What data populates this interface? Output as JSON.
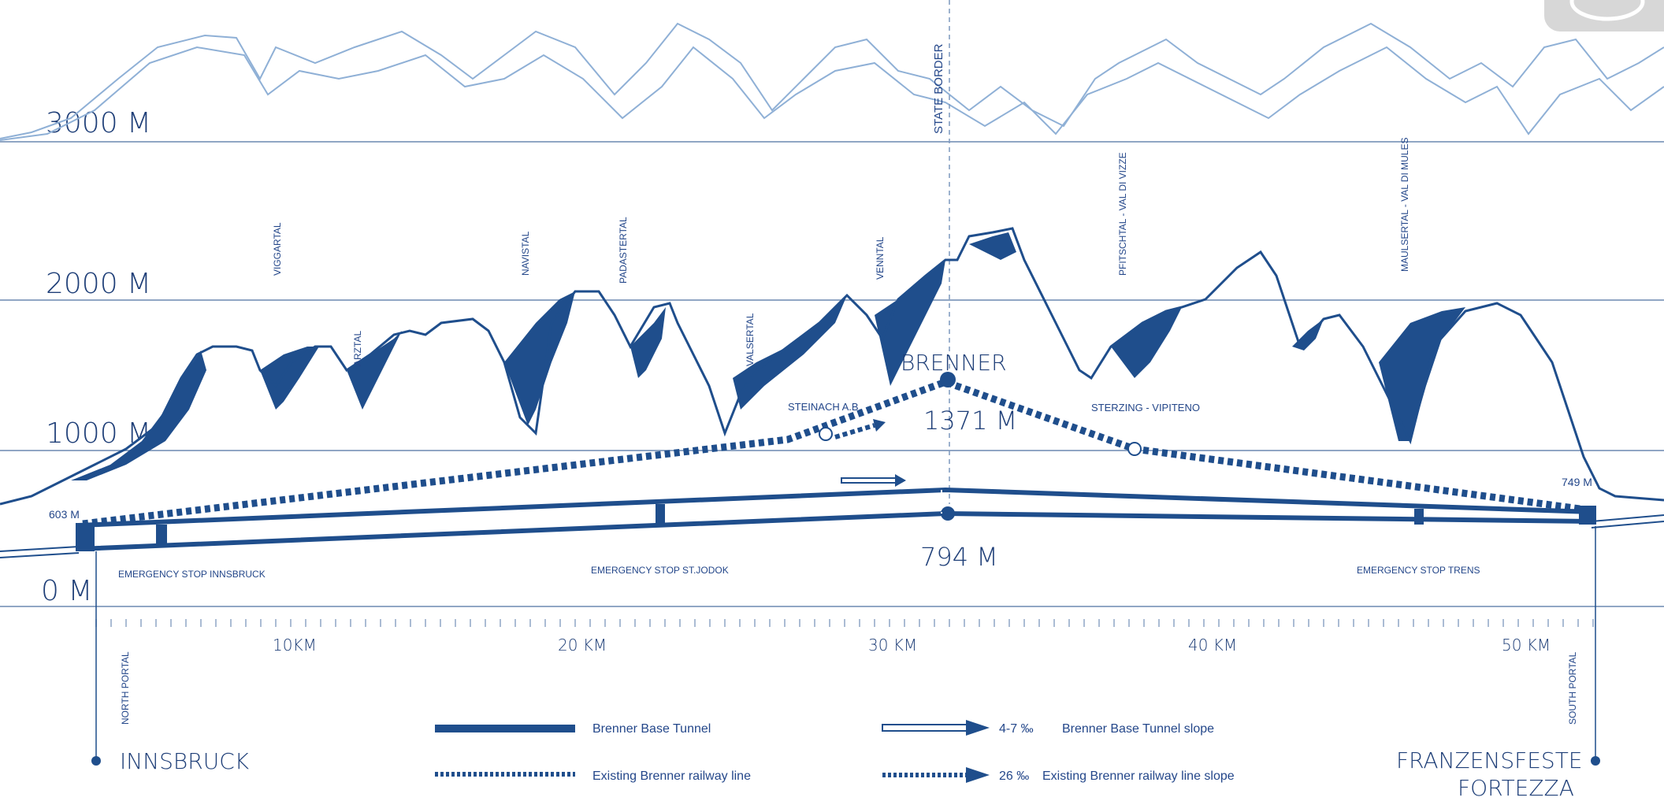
{
  "colors": {
    "primary": "#1f4e8c",
    "light": "#8fb0d6",
    "grid": "#5f7fa8"
  },
  "elevations": [
    "3000 M",
    "2000 M",
    "1000 M",
    "0 M"
  ],
  "valleys": [
    "VIGGARTAL",
    "ARZTAL",
    "NAVISTAL",
    "PADASTERTAL",
    "VALSERTAL",
    "VENNTAL",
    "PFITSCHTAL - VAL DI VIZZE",
    "MAULSERTAL - VAL DI MULES"
  ],
  "state_border": "STATE BORDER",
  "brenner": {
    "name": "BRENNER",
    "elevation": "1371 M",
    "tunnel_elevation": "794 M"
  },
  "stations": {
    "steinach": "STEINACH A.B.",
    "sterzing": "STERZING - VIPITENO"
  },
  "portals": {
    "north_elev": "603 M",
    "south_elev": "749 M",
    "north": "NORTH PORTAL",
    "south": "SOUTH PORTAL"
  },
  "emergency_stops": [
    "EMERGENCY  STOP INNSBRUCK",
    "EMERGENCY STOP ST.JODOK",
    "EMERGENCY STOP TRENS"
  ],
  "distances": [
    "10KM",
    "20 KM",
    "30 KM",
    "40 KM",
    "50 KM"
  ],
  "cities": {
    "north": "INNSBRUCK",
    "south_1": "FRANZENSFESTE",
    "south_2": "FORTEZZA"
  },
  "legend": {
    "tunnel": "Brenner Base Tunnel",
    "railway": "Existing Brenner railway line",
    "tunnel_slope_value": "4-7 ‰",
    "tunnel_slope": "Brenner Base Tunnel slope",
    "railway_slope_value": "26 ‰",
    "railway_slope": "Existing Brenner railway line slope"
  }
}
